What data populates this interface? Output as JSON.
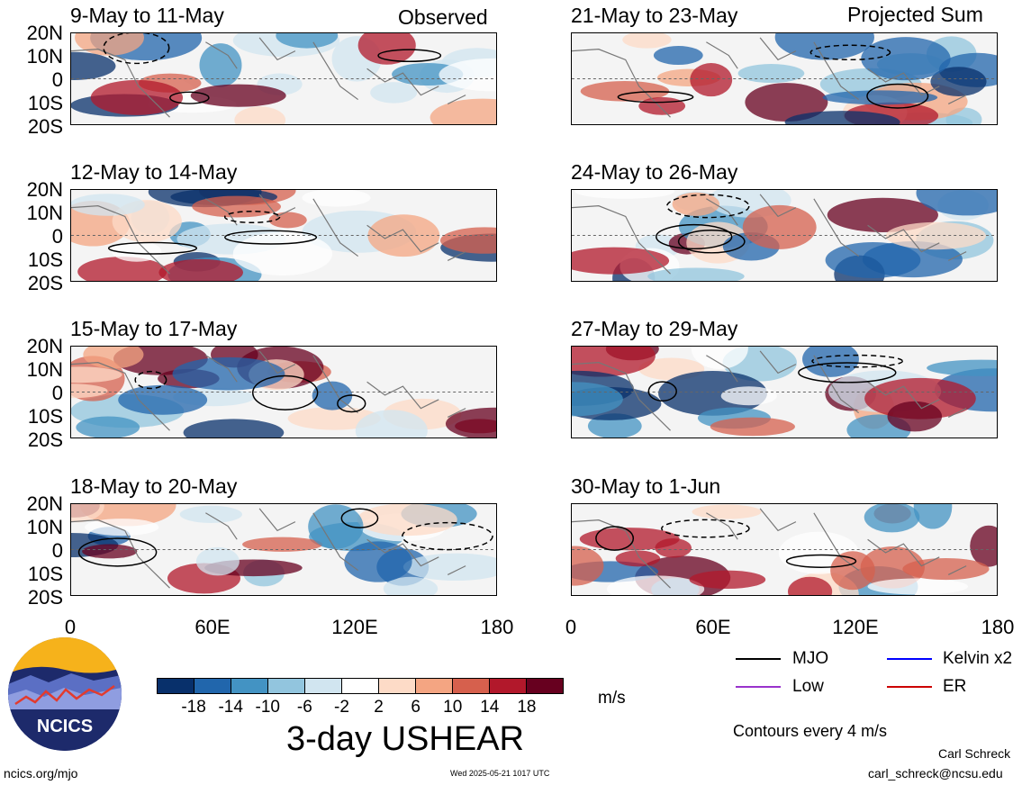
{
  "panels_left_header": "Observed",
  "panels_right_header": "Projected Sum",
  "panels": [
    {
      "id": "p1",
      "title": "9-May to 11-May"
    },
    {
      "id": "p2",
      "title": "12-May to 14-May"
    },
    {
      "id": "p3",
      "title": "15-May to 17-May"
    },
    {
      "id": "p4",
      "title": "18-May to 20-May"
    },
    {
      "id": "p5",
      "title": "21-May to 23-May"
    },
    {
      "id": "p6",
      "title": "24-May to 26-May"
    },
    {
      "id": "p7",
      "title": "27-May to 29-May"
    },
    {
      "id": "p8",
      "title": "30-May to 1-Jun"
    }
  ],
  "lat_labels": [
    "20N",
    "10N",
    "0",
    "10S",
    "20S"
  ],
  "lon_labels": [
    "0",
    "60E",
    "120E",
    "180"
  ],
  "colorbar": {
    "colors": [
      "#08306b",
      "#2166ac",
      "#4393c3",
      "#92c5de",
      "#d1e5f0",
      "#ffffff",
      "#fddbc7",
      "#f4a582",
      "#d6604d",
      "#b2182b",
      "#67001f"
    ],
    "ticks": [
      "-18",
      "-14",
      "-10",
      "-6",
      "-2",
      "2",
      "6",
      "10",
      "14",
      "18"
    ],
    "unit": "m/s"
  },
  "title": "3-day USHEAR",
  "legend": {
    "items": [
      {
        "label": "MJO",
        "color": "#000000"
      },
      {
        "label": "Kelvin x2",
        "color": "#0000ff"
      },
      {
        "label": "Low",
        "color": "#9933cc"
      },
      {
        "label": "ER",
        "color": "#cc0000"
      }
    ],
    "note": "Contours every 4 m/s"
  },
  "logo_text": "NCICS",
  "footer": {
    "url": "ncics.org/mjo",
    "timestamp": "Wed 2025-05-21 1017 UTC",
    "author": "Carl Schreck",
    "email": "carl_schreck@ncsu.edu"
  }
}
